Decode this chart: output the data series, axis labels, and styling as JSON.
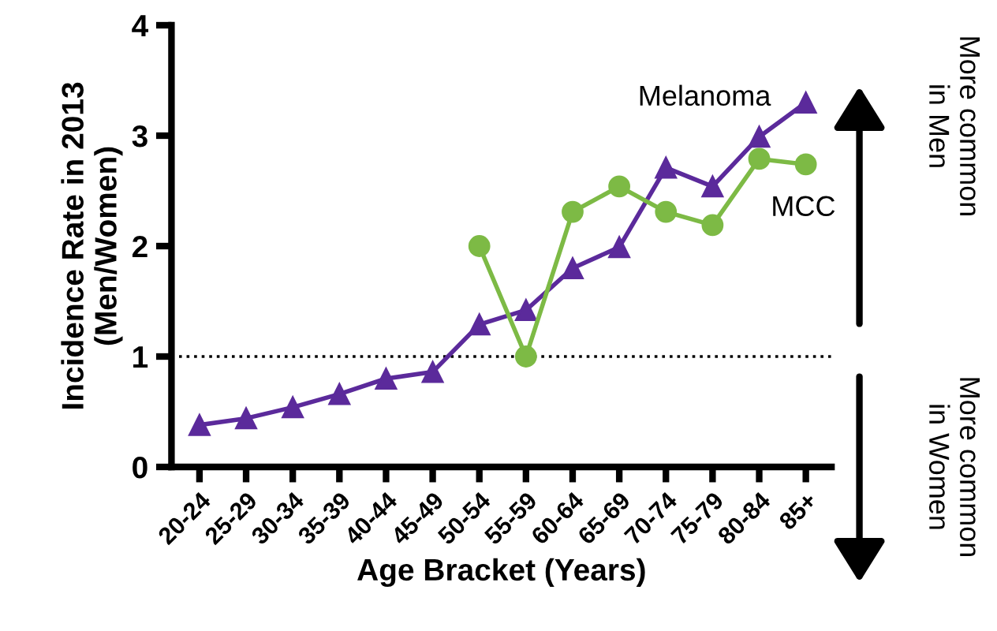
{
  "chart_data": {
    "type": "line",
    "xlabel": "Age Bracket (Years)",
    "ylabel": "Incidence Rate in 2013\n(Men/Women)",
    "categories": [
      "20-24",
      "25-29",
      "30-34",
      "35-39",
      "40-44",
      "45-49",
      "50-54",
      "55-59",
      "60-64",
      "65-69",
      "70-74",
      "75-79",
      "80-84",
      "85+"
    ],
    "series": [
      {
        "name": "Melanoma",
        "color": "#5b2a9b",
        "marker": "triangle",
        "values": [
          0.38,
          0.44,
          0.54,
          0.66,
          0.8,
          0.86,
          1.29,
          1.42,
          1.8,
          1.99,
          2.71,
          2.54,
          2.99,
          3.3
        ]
      },
      {
        "name": "MCC",
        "color": "#7dba45",
        "marker": "circle",
        "values": [
          null,
          null,
          null,
          null,
          null,
          null,
          2.0,
          1.0,
          2.31,
          2.54,
          2.31,
          2.19,
          2.79,
          2.74
        ]
      }
    ],
    "ylim": [
      0,
      4
    ],
    "yticks": [
      0,
      1,
      2,
      3,
      4
    ],
    "ref_lines": [
      {
        "axis": "y",
        "value": 1,
        "line_style": "dotted",
        "color": "#000000"
      }
    ],
    "annotations": [
      "More common\nin Men",
      "More common\nin Women"
    ],
    "grid": false,
    "legend": false,
    "line_style": "solid"
  }
}
